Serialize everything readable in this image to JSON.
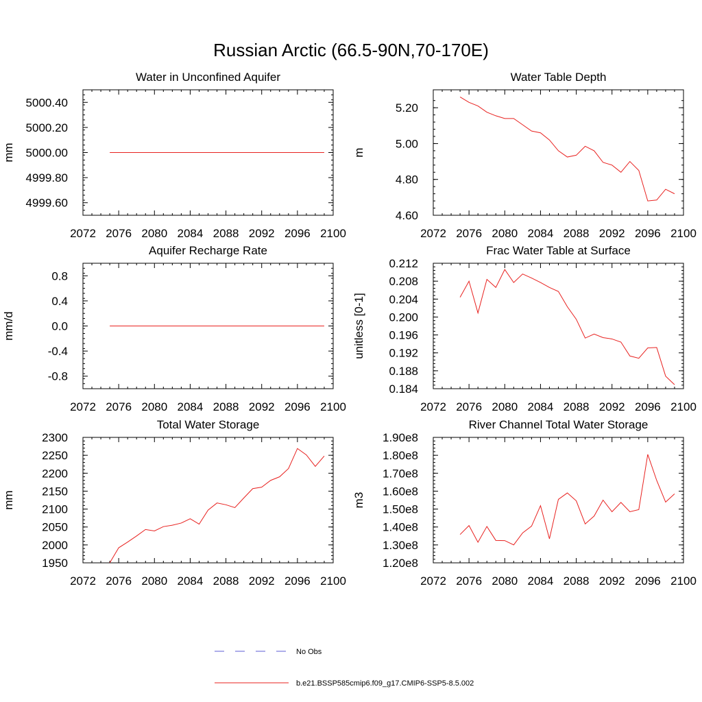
{
  "figure_title": "Russian Arctic (66.5-90N,70-170E)",
  "legend": {
    "entries": [
      {
        "label": "No Obs",
        "color": "#5b5bd6",
        "style": "dashed"
      },
      {
        "label": "b.e21.BSSP585cmip6.f09_g17.CMIP6-SSP5-8.5.002",
        "color": "#e8201e",
        "style": "solid"
      }
    ]
  },
  "colors": {
    "series": "#e8201e",
    "axis": "#000000"
  },
  "chart_data": [
    {
      "type": "line",
      "title": "Water in Unconfined Aquifer",
      "xlabel": "",
      "ylabel": "mm",
      "xlim": [
        2072,
        2100
      ],
      "ylim": [
        4999.5,
        5000.5
      ],
      "xticks": [
        2072,
        2076,
        2080,
        2084,
        2088,
        2092,
        2096,
        2100
      ],
      "xtick_labels": [
        "2072",
        "2076",
        "2080",
        "2084",
        "2088",
        "2092",
        "2096",
        "2100"
      ],
      "yticks": [
        4999.6,
        4999.8,
        5000.0,
        5000.2,
        5000.4
      ],
      "ytick_labels": [
        "4999.60",
        "4999.80",
        "5000.00",
        "5000.20",
        "5000.40"
      ],
      "series": [
        {
          "x": [
            2075,
            2076,
            2077,
            2078,
            2079,
            2080,
            2081,
            2082,
            2083,
            2084,
            2085,
            2086,
            2087,
            2088,
            2089,
            2090,
            2091,
            2092,
            2093,
            2094,
            2095,
            2096,
            2097,
            2098,
            2099
          ],
          "y": [
            5000,
            5000,
            5000,
            5000,
            5000,
            5000,
            5000,
            5000,
            5000,
            5000,
            5000,
            5000,
            5000,
            5000,
            5000,
            5000,
            5000,
            5000,
            5000,
            5000,
            5000,
            5000,
            5000,
            5000,
            5000
          ]
        }
      ]
    },
    {
      "type": "line",
      "title": "Water Table Depth",
      "xlabel": "",
      "ylabel": "m",
      "xlim": [
        2072,
        2100
      ],
      "ylim": [
        4.6,
        5.3
      ],
      "xticks": [
        2072,
        2076,
        2080,
        2084,
        2088,
        2092,
        2096,
        2100
      ],
      "xtick_labels": [
        "2072",
        "2076",
        "2080",
        "2084",
        "2088",
        "2092",
        "2096",
        "2100"
      ],
      "yticks": [
        4.6,
        4.8,
        5.0,
        5.2
      ],
      "ytick_labels": [
        "4.60",
        "4.80",
        "5.00",
        "5.20"
      ],
      "series": [
        {
          "x": [
            2075,
            2076,
            2077,
            2078,
            2079,
            2080,
            2081,
            2082,
            2083,
            2084,
            2085,
            2086,
            2087,
            2088,
            2089,
            2090,
            2091,
            2092,
            2093,
            2094,
            2095,
            2096,
            2097,
            2098,
            2099
          ],
          "y": [
            5.26,
            5.23,
            5.21,
            5.175,
            5.155,
            5.14,
            5.14,
            5.105,
            5.07,
            5.06,
            5.02,
            4.96,
            4.925,
            4.935,
            4.985,
            4.96,
            4.895,
            4.88,
            4.84,
            4.9,
            4.85,
            4.68,
            4.685,
            4.745,
            4.72
          ]
        }
      ]
    },
    {
      "type": "line",
      "title": "Aquifer Recharge Rate",
      "xlabel": "",
      "ylabel": "mm/d",
      "xlim": [
        2072,
        2100
      ],
      "ylim": [
        -1.0,
        1.0
      ],
      "xticks": [
        2072,
        2076,
        2080,
        2084,
        2088,
        2092,
        2096,
        2100
      ],
      "xtick_labels": [
        "2072",
        "2076",
        "2080",
        "2084",
        "2088",
        "2092",
        "2096",
        "2100"
      ],
      "yticks": [
        -0.8,
        -0.4,
        0.0,
        0.4,
        0.8
      ],
      "ytick_labels": [
        "-0.8",
        "-0.4",
        "0.0",
        "0.4",
        "0.8"
      ],
      "series": [
        {
          "x": [
            2075,
            2076,
            2077,
            2078,
            2079,
            2080,
            2081,
            2082,
            2083,
            2084,
            2085,
            2086,
            2087,
            2088,
            2089,
            2090,
            2091,
            2092,
            2093,
            2094,
            2095,
            2096,
            2097,
            2098,
            2099
          ],
          "y": [
            0,
            0,
            0,
            0,
            0,
            0,
            0,
            0,
            0,
            0,
            0,
            0,
            0,
            0,
            0,
            0,
            0,
            0,
            0,
            0,
            0,
            0,
            0,
            0,
            0
          ]
        }
      ]
    },
    {
      "type": "line",
      "title": "Frac Water Table at Surface",
      "xlabel": "",
      "ylabel": "unitless [0-1]",
      "xlim": [
        2072,
        2100
      ],
      "ylim": [
        0.184,
        0.212
      ],
      "xticks": [
        2072,
        2076,
        2080,
        2084,
        2088,
        2092,
        2096,
        2100
      ],
      "xtick_labels": [
        "2072",
        "2076",
        "2080",
        "2084",
        "2088",
        "2092",
        "2096",
        "2100"
      ],
      "yticks": [
        0.184,
        0.188,
        0.192,
        0.196,
        0.2,
        0.204,
        0.208,
        0.212
      ],
      "ytick_labels": [
        "0.184",
        "0.188",
        "0.192",
        "0.196",
        "0.200",
        "0.204",
        "0.208",
        "0.212"
      ],
      "series": [
        {
          "x": [
            2075,
            2076,
            2077,
            2078,
            2079,
            2080,
            2081,
            2082,
            2083,
            2084,
            2085,
            2086,
            2087,
            2088,
            2089,
            2090,
            2091,
            2092,
            2093,
            2094,
            2095,
            2096,
            2097,
            2098,
            2099
          ],
          "y": [
            0.2044,
            0.208,
            0.2009,
            0.2084,
            0.2066,
            0.2106,
            0.2077,
            0.2096,
            0.2087,
            0.2077,
            0.2066,
            0.2057,
            0.2023,
            0.1995,
            0.1953,
            0.1962,
            0.1954,
            0.1951,
            0.1944,
            0.1913,
            0.1908,
            0.1931,
            0.1932,
            0.1868,
            0.1849
          ]
        }
      ]
    },
    {
      "type": "line",
      "title": "Total Water Storage",
      "xlabel": "",
      "ylabel": "mm",
      "xlim": [
        2072,
        2100
      ],
      "ylim": [
        1950,
        2300
      ],
      "xticks": [
        2072,
        2076,
        2080,
        2084,
        2088,
        2092,
        2096,
        2100
      ],
      "xtick_labels": [
        "2072",
        "2076",
        "2080",
        "2084",
        "2088",
        "2092",
        "2096",
        "2100"
      ],
      "yticks": [
        1950,
        2000,
        2050,
        2100,
        2150,
        2200,
        2250,
        2300
      ],
      "ytick_labels": [
        "1950",
        "2000",
        "2050",
        "2100",
        "2150",
        "2200",
        "2250",
        "2300"
      ],
      "series": [
        {
          "x": [
            2075,
            2076,
            2077,
            2078,
            2079,
            2080,
            2081,
            2082,
            2083,
            2084,
            2085,
            2086,
            2087,
            2088,
            2089,
            2090,
            2091,
            2092,
            2093,
            2094,
            2095,
            2096,
            2097,
            2098,
            2099
          ],
          "y": [
            1950,
            1992,
            2008,
            2025,
            2043,
            2039,
            2051,
            2055,
            2061,
            2073,
            2058,
            2097,
            2117,
            2112,
            2104,
            2131,
            2157,
            2161,
            2180,
            2190,
            2213,
            2269,
            2251,
            2219,
            2248
          ]
        }
      ]
    },
    {
      "type": "line",
      "title": "River Channel Total Water Storage",
      "xlabel": "",
      "ylabel": "m3",
      "xlim": [
        2072,
        2100
      ],
      "ylim": [
        120000000,
        190000000
      ],
      "xticks": [
        2072,
        2076,
        2080,
        2084,
        2088,
        2092,
        2096,
        2100
      ],
      "xtick_labels": [
        "2072",
        "2076",
        "2080",
        "2084",
        "2088",
        "2092",
        "2096",
        "2100"
      ],
      "yticks": [
        120000000,
        130000000,
        140000000,
        150000000,
        160000000,
        170000000,
        180000000,
        190000000
      ],
      "ytick_labels": [
        "1.20e8",
        "1.30e8",
        "1.40e8",
        "1.50e8",
        "1.60e8",
        "1.70e8",
        "1.80e8",
        "1.90e8"
      ],
      "series": [
        {
          "x": [
            2075,
            2076,
            2077,
            2078,
            2079,
            2080,
            2081,
            2082,
            2083,
            2084,
            2085,
            2086,
            2087,
            2088,
            2089,
            2090,
            2091,
            2092,
            2093,
            2094,
            2095,
            2096,
            2097,
            2098,
            2099
          ],
          "y": [
            135800000,
            140800000,
            131500000,
            140300000,
            132500000,
            132400000,
            130000000,
            136700000,
            140500000,
            151900000,
            133400000,
            155400000,
            159000000,
            154600000,
            141700000,
            146100000,
            155000000,
            148500000,
            153700000,
            148500000,
            149700000,
            180500000,
            166000000,
            153900000,
            158500000
          ]
        }
      ]
    }
  ]
}
